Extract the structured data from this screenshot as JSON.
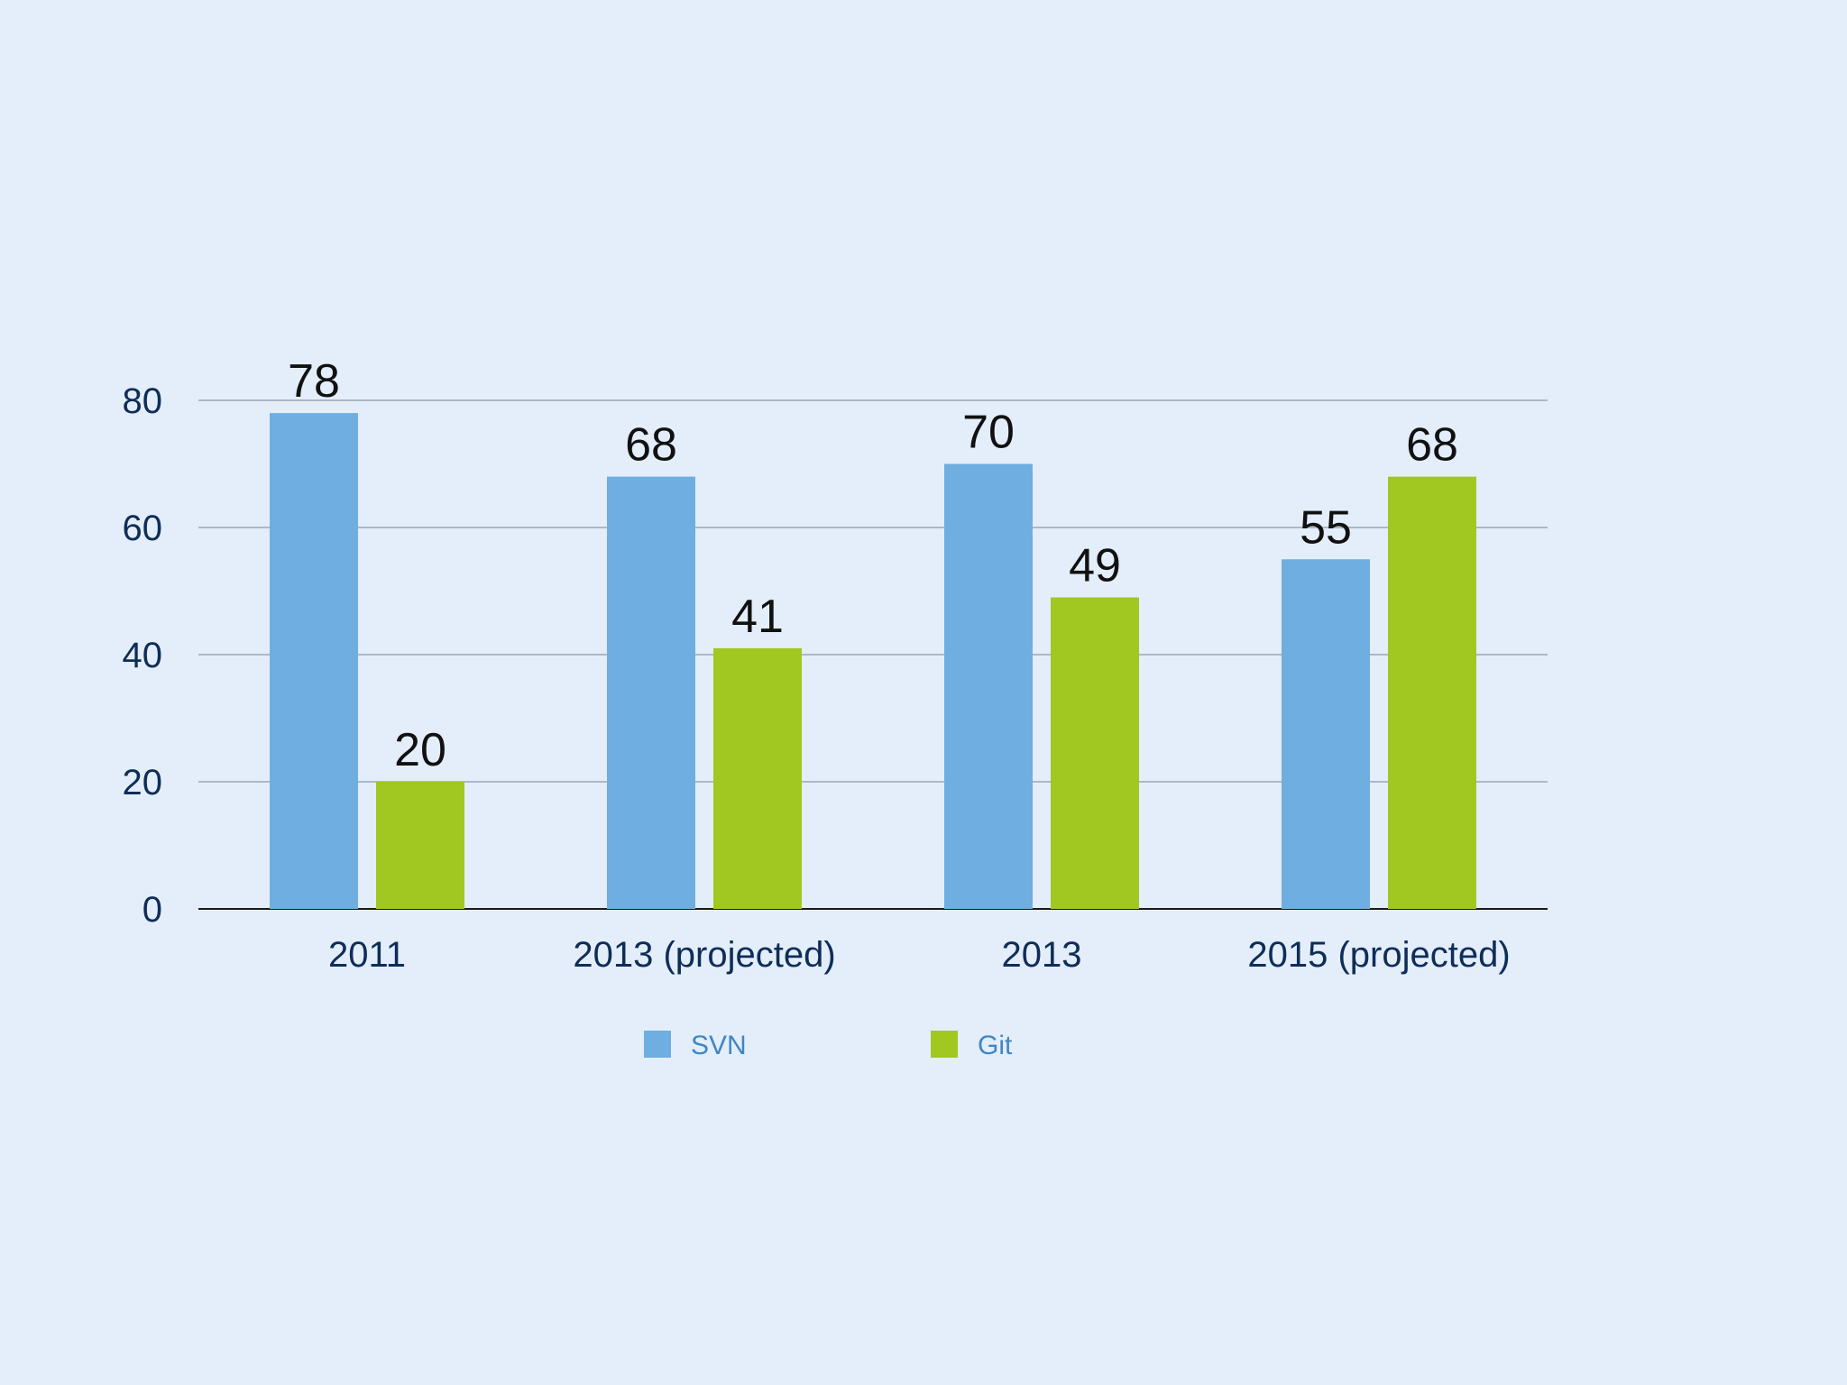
{
  "chart_data": {
    "type": "bar",
    "title": "",
    "xlabel": "",
    "ylabel": "",
    "categories": [
      "2011",
      "2013 (projected)",
      "2013",
      "2015 (projected)"
    ],
    "series": [
      {
        "name": "SVN",
        "color": "#6faee0",
        "values": [
          78,
          68,
          70,
          55
        ]
      },
      {
        "name": "Git",
        "color": "#a1c721",
        "values": [
          20,
          41,
          49,
          68
        ]
      }
    ],
    "ylim": [
      0,
      80
    ],
    "yticks": [
      0,
      20,
      40,
      60,
      80
    ],
    "grid": true,
    "data_labels": true,
    "legend": {
      "position": "bottom"
    }
  }
}
